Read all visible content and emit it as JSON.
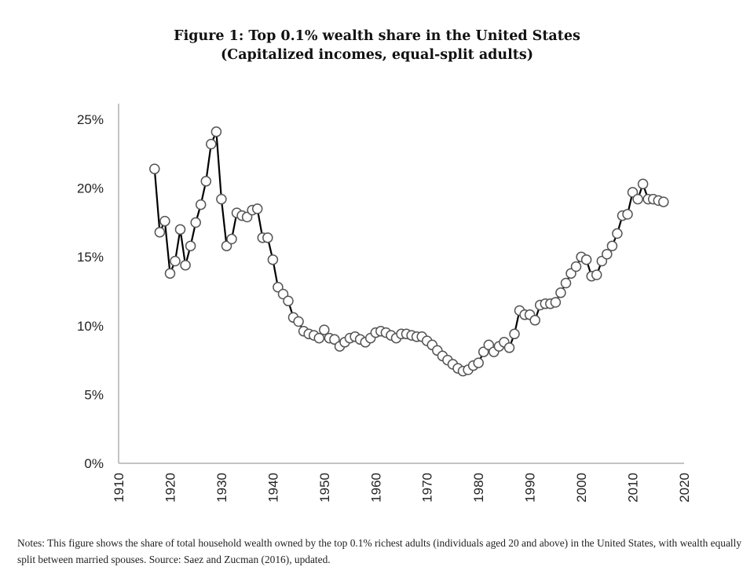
{
  "figure": {
    "title_line1": "Figure 1: Top 0.1% wealth share in the United States",
    "title_line2": "(Capitalized incomes, equal-split adults)",
    "notes": "Notes: This figure shows the share of total household wealth owned by the top 0.1% richest adults (individuals aged 20 and above) in the United States, with wealth equally split between married spouses. Source: Saez and Zucman (2016), updated."
  },
  "chart_data": {
    "type": "line",
    "title": "Figure 1: Top 0.1% wealth share in the United States",
    "subtitle": "(Capitalized incomes, equal-split adults)",
    "xlabel": "",
    "ylabel": "",
    "xlim": [
      1910,
      2020
    ],
    "ylim": [
      0,
      25
    ],
    "grid": false,
    "legend": "none",
    "x_ticks": [
      "1910",
      "1920",
      "1930",
      "1940",
      "1950",
      "1960",
      "1970",
      "1980",
      "1990",
      "2000",
      "2010",
      "2020"
    ],
    "x_tick_values": [
      1910,
      1920,
      1930,
      1940,
      1950,
      1960,
      1970,
      1980,
      1990,
      2000,
      2010,
      2020
    ],
    "y_ticks": [
      "0%",
      "5%",
      "10%",
      "15%",
      "20%",
      "25%"
    ],
    "y_tick_values": [
      0,
      5,
      10,
      15,
      20,
      25
    ],
    "marker": "hollow-circle",
    "colors": {
      "line": "#000000",
      "marker_edge": "#555555",
      "marker_fill": "#ffffff",
      "axis": "#b0b0b0"
    },
    "series": [
      {
        "name": "Top 0.1% wealth share",
        "unit": "percent",
        "x": [
          1917,
          1918,
          1919,
          1920,
          1921,
          1922,
          1923,
          1924,
          1925,
          1926,
          1927,
          1928,
          1929,
          1930,
          1931,
          1932,
          1933,
          1934,
          1935,
          1936,
          1937,
          1938,
          1939,
          1940,
          1941,
          1942,
          1943,
          1944,
          1945,
          1946,
          1947,
          1948,
          1949,
          1950,
          1951,
          1952,
          1953,
          1954,
          1955,
          1956,
          1957,
          1958,
          1959,
          1960,
          1961,
          1962,
          1963,
          1964,
          1965,
          1966,
          1967,
          1968,
          1969,
          1970,
          1971,
          1972,
          1973,
          1974,
          1975,
          1976,
          1977,
          1978,
          1979,
          1980,
          1981,
          1982,
          1983,
          1984,
          1985,
          1986,
          1987,
          1988,
          1989,
          1990,
          1991,
          1992,
          1993,
          1994,
          1995,
          1996,
          1997,
          1998,
          1999,
          2000,
          2001,
          2002,
          2003,
          2004,
          2005,
          2006,
          2007,
          2008,
          2009,
          2010,
          2011,
          2012,
          2013,
          2014,
          2015,
          2016
        ],
        "values": [
          21.4,
          16.8,
          17.6,
          13.8,
          14.7,
          17.0,
          14.4,
          15.8,
          17.5,
          18.8,
          20.5,
          23.2,
          24.1,
          19.2,
          15.8,
          16.3,
          18.2,
          18.0,
          17.9,
          18.4,
          18.5,
          16.4,
          16.4,
          14.8,
          12.8,
          12.3,
          11.8,
          10.6,
          10.3,
          9.6,
          9.4,
          9.3,
          9.1,
          9.7,
          9.1,
          9.0,
          8.5,
          8.8,
          9.1,
          9.2,
          9.0,
          8.8,
          9.1,
          9.5,
          9.6,
          9.5,
          9.3,
          9.1,
          9.4,
          9.4,
          9.3,
          9.2,
          9.2,
          8.9,
          8.6,
          8.2,
          7.8,
          7.5,
          7.2,
          6.9,
          6.7,
          6.8,
          7.1,
          7.3,
          8.1,
          8.6,
          8.1,
          8.5,
          8.8,
          8.4,
          9.4,
          11.1,
          10.8,
          10.8,
          10.4,
          11.5,
          11.6,
          11.6,
          11.7,
          12.4,
          13.1,
          13.8,
          14.3,
          15.0,
          14.8,
          13.6,
          13.7,
          14.7,
          15.2,
          15.8,
          16.7,
          18.0,
          18.1,
          19.7,
          19.2,
          20.3,
          19.2,
          19.2,
          19.1,
          19.0
        ]
      }
    ]
  }
}
